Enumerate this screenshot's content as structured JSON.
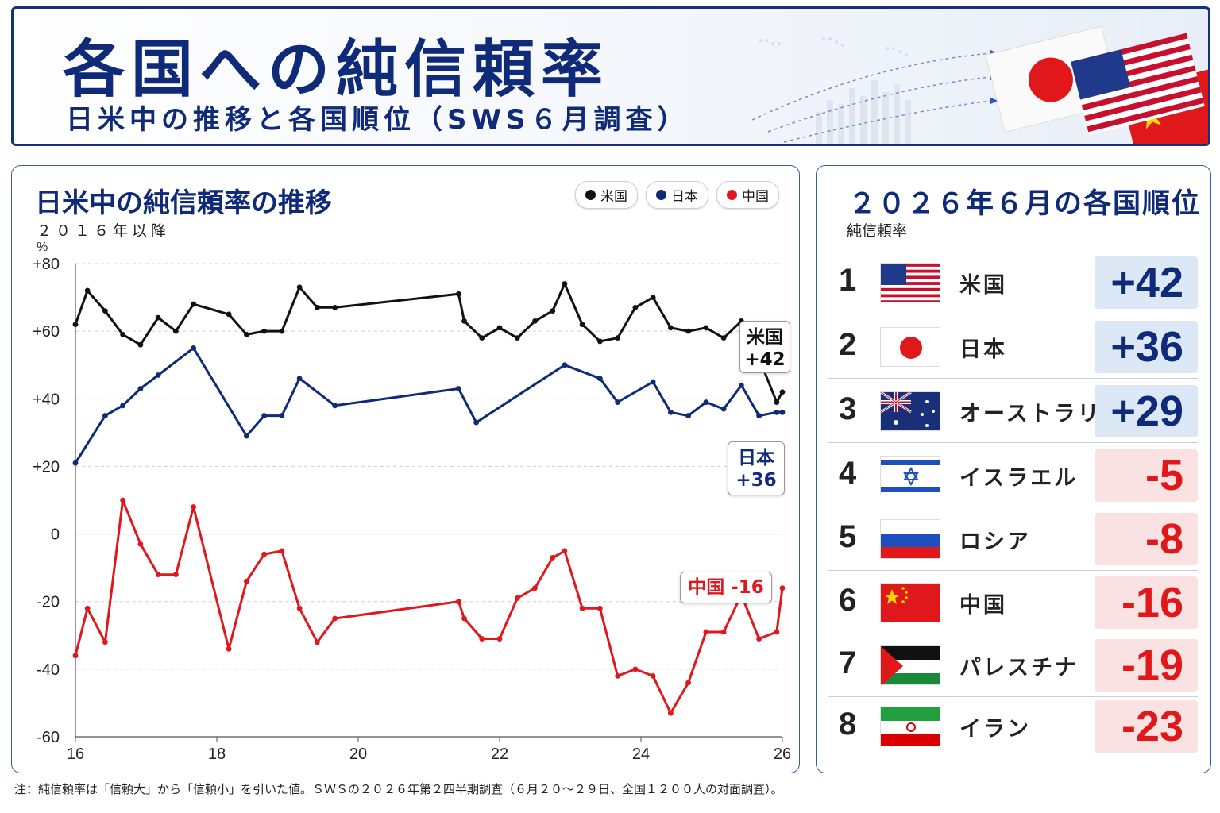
{
  "header": {
    "title": "各国への純信頼率",
    "subtitle": "日米中の推移と各国順位（SWS６月調査）"
  },
  "left_panel": {
    "title": "日米中の純信頼率の推移",
    "subtitle": "２０１６年以降",
    "unit": "%",
    "legend": [
      {
        "label": "米国",
        "color": "#111111"
      },
      {
        "label": "日本",
        "color": "#0f2a78"
      },
      {
        "label": "中国",
        "color": "#e0171b"
      }
    ],
    "callouts": {
      "us": {
        "name": "米国",
        "value": "+42"
      },
      "japan": {
        "name": "日本",
        "value": "+36"
      },
      "china": {
        "text": "中国 -16"
      }
    }
  },
  "chart_data": {
    "type": "line",
    "title": "日米中の純信頼率の推移",
    "xlabel": "",
    "ylabel": "%",
    "xlim": [
      16,
      26
    ],
    "ylim": [
      -60,
      80
    ],
    "x_ticks": [
      "16",
      "18",
      "20",
      "22",
      "24",
      "26"
    ],
    "y_ticks": [
      "+80",
      "+60",
      "+40",
      "+20",
      "0",
      "-20",
      "-40",
      "-60"
    ],
    "grid": true,
    "legend_position": "top-right",
    "series": [
      {
        "name": "米国",
        "color": "#111111",
        "points": [
          [
            16.0,
            62
          ],
          [
            16.17,
            72
          ],
          [
            16.42,
            66
          ],
          [
            16.67,
            59
          ],
          [
            16.92,
            56
          ],
          [
            17.17,
            64
          ],
          [
            17.42,
            60
          ],
          [
            17.67,
            68
          ],
          [
            18.17,
            65
          ],
          [
            18.42,
            59
          ],
          [
            18.67,
            60
          ],
          [
            18.92,
            60
          ],
          [
            19.17,
            73
          ],
          [
            19.42,
            67
          ],
          [
            19.67,
            67
          ],
          [
            21.42,
            71
          ],
          [
            21.5,
            63
          ],
          [
            21.75,
            58
          ],
          [
            22.0,
            61
          ],
          [
            22.25,
            58
          ],
          [
            22.5,
            63
          ],
          [
            22.75,
            66
          ],
          [
            22.92,
            74
          ],
          [
            23.17,
            62
          ],
          [
            23.42,
            57
          ],
          [
            23.67,
            58
          ],
          [
            23.92,
            67
          ],
          [
            24.17,
            70
          ],
          [
            24.42,
            61
          ],
          [
            24.67,
            60
          ],
          [
            24.92,
            61
          ],
          [
            25.17,
            58
          ],
          [
            25.42,
            63
          ],
          [
            25.67,
            52
          ],
          [
            25.92,
            39
          ],
          [
            26.0,
            42
          ]
        ]
      },
      {
        "name": "日本",
        "color": "#0f2a78",
        "points": [
          [
            16.0,
            21
          ],
          [
            16.42,
            35
          ],
          [
            16.67,
            38
          ],
          [
            16.92,
            43
          ],
          [
            17.17,
            47
          ],
          [
            17.67,
            55
          ],
          [
            18.42,
            29
          ],
          [
            18.67,
            35
          ],
          [
            18.92,
            35
          ],
          [
            19.17,
            46
          ],
          [
            19.67,
            38
          ],
          [
            21.42,
            43
          ],
          [
            21.67,
            33
          ],
          [
            22.92,
            50
          ],
          [
            23.42,
            46
          ],
          [
            23.67,
            39
          ],
          [
            24.17,
            45
          ],
          [
            24.42,
            36
          ],
          [
            24.67,
            35
          ],
          [
            24.92,
            39
          ],
          [
            25.17,
            37
          ],
          [
            25.42,
            44
          ],
          [
            25.67,
            35
          ],
          [
            25.92,
            36
          ],
          [
            26.0,
            36
          ]
        ]
      },
      {
        "name": "中国",
        "color": "#e0171b",
        "points": [
          [
            16.0,
            -36
          ],
          [
            16.17,
            -22
          ],
          [
            16.42,
            -32
          ],
          [
            16.67,
            10
          ],
          [
            16.92,
            -3
          ],
          [
            17.17,
            -12
          ],
          [
            17.42,
            -12
          ],
          [
            17.67,
            8
          ],
          [
            18.17,
            -34
          ],
          [
            18.42,
            -14
          ],
          [
            18.67,
            -6
          ],
          [
            18.92,
            -5
          ],
          [
            19.17,
            -22
          ],
          [
            19.42,
            -32
          ],
          [
            19.67,
            -25
          ],
          [
            21.42,
            -20
          ],
          [
            21.5,
            -25
          ],
          [
            21.75,
            -31
          ],
          [
            22.0,
            -31
          ],
          [
            22.25,
            -19
          ],
          [
            22.5,
            -16
          ],
          [
            22.75,
            -7
          ],
          [
            22.92,
            -5
          ],
          [
            23.17,
            -22
          ],
          [
            23.42,
            -22
          ],
          [
            23.67,
            -42
          ],
          [
            23.92,
            -40
          ],
          [
            24.17,
            -42
          ],
          [
            24.42,
            -53
          ],
          [
            24.67,
            -44
          ],
          [
            24.92,
            -29
          ],
          [
            25.17,
            -29
          ],
          [
            25.42,
            -18
          ],
          [
            25.67,
            -31
          ],
          [
            25.92,
            -29
          ],
          [
            26.0,
            -16
          ]
        ]
      }
    ]
  },
  "right_panel": {
    "title": "２０２６年６月の各国順位",
    "subtitle": "純信頼率",
    "ranking": [
      {
        "rank": "1",
        "country": "米国",
        "value": "+42",
        "flag": "us-flag"
      },
      {
        "rank": "2",
        "country": "日本",
        "value": "+36",
        "flag": "japan-flag"
      },
      {
        "rank": "3",
        "country": "オーストラリア",
        "value": "+29",
        "flag": "australia-flag"
      },
      {
        "rank": "4",
        "country": "イスラエル",
        "value": "-5",
        "flag": "israel-flag"
      },
      {
        "rank": "5",
        "country": "ロシア",
        "value": "-8",
        "flag": "russia-flag"
      },
      {
        "rank": "6",
        "country": "中国",
        "value": "-16",
        "flag": "china-flag"
      },
      {
        "rank": "7",
        "country": "パレスチナ",
        "value": "-19",
        "flag": "palestine-flag"
      },
      {
        "rank": "8",
        "country": "イラン",
        "value": "-23",
        "flag": "iran-flag"
      }
    ]
  },
  "footnote": "注：純信頼率は「信頼大」から「信頼小」を引いた値。ＳＷＳの２０２６年第２四半期調査（６月２０～２９日、全国１２００人の対面調査）。"
}
